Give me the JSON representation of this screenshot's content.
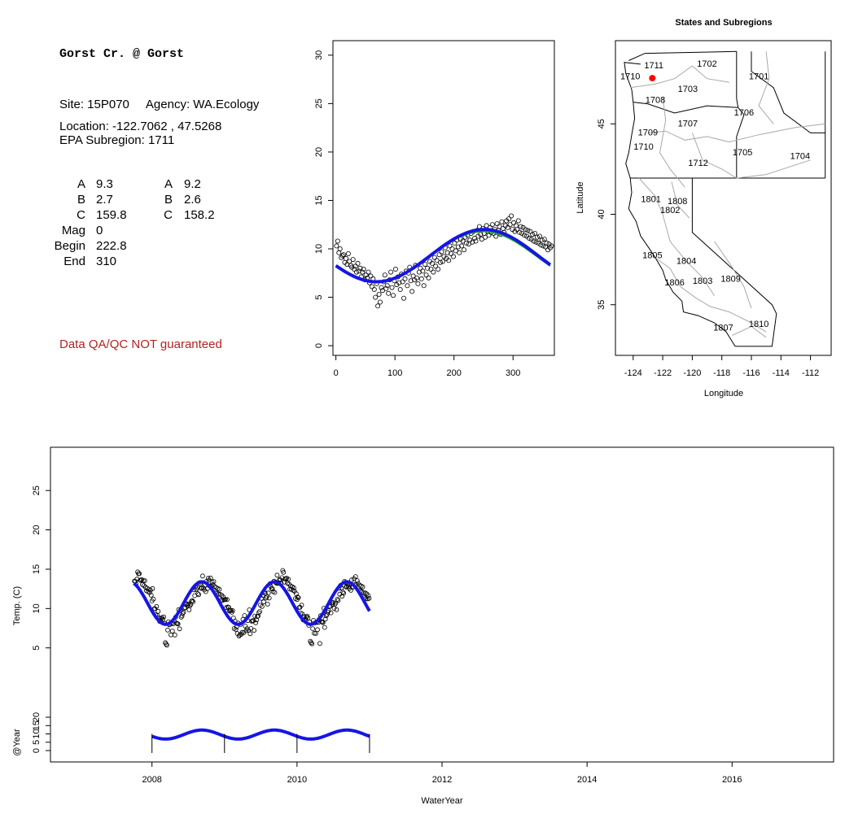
{
  "site": {
    "title": "Gorst Cr. @ Gorst",
    "site_line": "Site: 15P070     Agency: WA.Ecology",
    "location_line": "Location: -122.7062 , 47.5268",
    "subregion_line": "EPA Subregion: 1711",
    "params_left": [
      {
        "label": "A",
        "value": "9.3"
      },
      {
        "label": "B",
        "value": "2.7"
      },
      {
        "label": "C",
        "value": "159.8"
      },
      {
        "label": "Mag",
        "value": "0"
      },
      {
        "label": "Begin",
        "value": "222.8"
      },
      {
        "label": "End",
        "value": "310"
      }
    ],
    "params_right": [
      {
        "label": "A",
        "value": "9.2"
      },
      {
        "label": "B",
        "value": "2.6"
      },
      {
        "label": "C",
        "value": "158.2"
      }
    ],
    "qa_note": "Data QA/QC NOT guaranteed",
    "qa_color": "#b22222"
  },
  "colors": {
    "fit": "#1515e6",
    "fit_alt": "#22aa22",
    "points": "#000000",
    "boundary": "#000000",
    "subregion": "#a9a9a9",
    "site_marker": "#ff0000"
  },
  "chart_data": [
    {
      "id": "doy",
      "type": "scatter",
      "title": "",
      "xlabel": "",
      "ylabel": "",
      "xlim": [
        -5,
        370
      ],
      "ylim": [
        -1,
        31.5
      ],
      "xticks": [
        0,
        100,
        200,
        300
      ],
      "yticks": [
        0,
        5,
        10,
        15,
        20,
        25,
        30
      ],
      "model": {
        "A": 9.3,
        "B": 2.7,
        "C": 159.8
      },
      "model_alt": {
        "A": 9.2,
        "B": 2.6,
        "C": 158.2
      },
      "points": [
        [
          1,
          10.3
        ],
        [
          3,
          10.8
        ],
        [
          5,
          9.6
        ],
        [
          7,
          10.0
        ],
        [
          9,
          9.1
        ],
        [
          11,
          9.3
        ],
        [
          13,
          9.4
        ],
        [
          15,
          8.6
        ],
        [
          17,
          9.0
        ],
        [
          19,
          8.4
        ],
        [
          21,
          9.5
        ],
        [
          23,
          8.7
        ],
        [
          25,
          8.3
        ],
        [
          27,
          8.1
        ],
        [
          29,
          8.9
        ],
        [
          31,
          7.9
        ],
        [
          33,
          8.2
        ],
        [
          35,
          7.6
        ],
        [
          37,
          8.5
        ],
        [
          39,
          7.7
        ],
        [
          41,
          8.0
        ],
        [
          43,
          7.1
        ],
        [
          45,
          7.6
        ],
        [
          47,
          7.9
        ],
        [
          49,
          6.8
        ],
        [
          51,
          7.3
        ],
        [
          53,
          7.0
        ],
        [
          55,
          7.6
        ],
        [
          57,
          6.5
        ],
        [
          59,
          7.2
        ],
        [
          61,
          6.1
        ],
        [
          63,
          6.9
        ],
        [
          65,
          5.8
        ],
        [
          67,
          5.0
        ],
        [
          69,
          6.4
        ],
        [
          71,
          4.1
        ],
        [
          73,
          5.3
        ],
        [
          75,
          4.5
        ],
        [
          77,
          6.0
        ],
        [
          79,
          5.7
        ],
        [
          81,
          6.6
        ],
        [
          83,
          7.3
        ],
        [
          85,
          5.9
        ],
        [
          87,
          6.2
        ],
        [
          89,
          5.4
        ],
        [
          91,
          6.8
        ],
        [
          93,
          7.6
        ],
        [
          95,
          6.0
        ],
        [
          97,
          5.2
        ],
        [
          99,
          6.7
        ],
        [
          101,
          7.9
        ],
        [
          103,
          6.3
        ],
        [
          105,
          7.1
        ],
        [
          107,
          6.5
        ],
        [
          109,
          5.8
        ],
        [
          111,
          7.4
        ],
        [
          113,
          6.6
        ],
        [
          115,
          4.9
        ],
        [
          117,
          6.9
        ],
        [
          119,
          7.7
        ],
        [
          121,
          6.2
        ],
        [
          123,
          7.5
        ],
        [
          125,
          8.1
        ],
        [
          127,
          6.7
        ],
        [
          129,
          5.6
        ],
        [
          131,
          7.2
        ],
        [
          133,
          6.8
        ],
        [
          135,
          8.3
        ],
        [
          137,
          7.0
        ],
        [
          139,
          6.4
        ],
        [
          141,
          7.6
        ],
        [
          143,
          8.0
        ],
        [
          145,
          6.9
        ],
        [
          147,
          7.7
        ],
        [
          149,
          6.2
        ],
        [
          151,
          8.4
        ],
        [
          153,
          7.3
        ],
        [
          155,
          8.0
        ],
        [
          157,
          7.0
        ],
        [
          159,
          8.7
        ],
        [
          161,
          7.9
        ],
        [
          163,
          8.5
        ],
        [
          165,
          7.6
        ],
        [
          167,
          9.1
        ],
        [
          169,
          8.2
        ],
        [
          171,
          8.8
        ],
        [
          173,
          7.9
        ],
        [
          175,
          9.4
        ],
        [
          177,
          8.6
        ],
        [
          179,
          9.7
        ],
        [
          181,
          8.7
        ],
        [
          183,
          9.2
        ],
        [
          185,
          10.1
        ],
        [
          187,
          9.0
        ],
        [
          189,
          9.6
        ],
        [
          191,
          8.8
        ],
        [
          193,
          10.3
        ],
        [
          195,
          9.5
        ],
        [
          197,
          10.0
        ],
        [
          199,
          9.2
        ],
        [
          201,
          10.6
        ],
        [
          203,
          9.8
        ],
        [
          205,
          10.9
        ],
        [
          207,
          10.2
        ],
        [
          209,
          9.6
        ],
        [
          211,
          11.0
        ],
        [
          213,
          10.3
        ],
        [
          215,
          10.8
        ],
        [
          217,
          9.9
        ],
        [
          219,
          11.2
        ],
        [
          221,
          10.6
        ],
        [
          223,
          11.4
        ],
        [
          225,
          10.5
        ],
        [
          227,
          10.9
        ],
        [
          229,
          11.6
        ],
        [
          231,
          10.7
        ],
        [
          233,
          11.8
        ],
        [
          235,
          11.1
        ],
        [
          237,
          10.8
        ],
        [
          239,
          11.9
        ],
        [
          241,
          11.3
        ],
        [
          243,
          12.3
        ],
        [
          245,
          11.5
        ],
        [
          247,
          11.0
        ],
        [
          249,
          12.1
        ],
        [
          251,
          11.6
        ],
        [
          253,
          11.2
        ],
        [
          255,
          12.4
        ],
        [
          257,
          11.8
        ],
        [
          259,
          11.4
        ],
        [
          261,
          12.2
        ],
        [
          263,
          11.7
        ],
        [
          265,
          12.5
        ],
        [
          267,
          11.6
        ],
        [
          269,
          12.0
        ],
        [
          271,
          11.3
        ],
        [
          273,
          12.6
        ],
        [
          275,
          11.9
        ],
        [
          277,
          12.3
        ],
        [
          279,
          11.5
        ],
        [
          281,
          12.8
        ],
        [
          283,
          12.1
        ],
        [
          285,
          11.7
        ],
        [
          287,
          12.4
        ],
        [
          289,
          12.9
        ],
        [
          291,
          12.2
        ],
        [
          293,
          13.1
        ],
        [
          295,
          12.5
        ],
        [
          297,
          13.4
        ],
        [
          299,
          12.0
        ],
        [
          301,
          12.7
        ],
        [
          303,
          11.8
        ],
        [
          305,
          12.4
        ],
        [
          307,
          12.0
        ],
        [
          309,
          12.9
        ],
        [
          311,
          11.7
        ],
        [
          313,
          12.3
        ],
        [
          315,
          11.6
        ],
        [
          317,
          12.2
        ],
        [
          319,
          11.4
        ],
        [
          321,
          12.0
        ],
        [
          323,
          11.3
        ],
        [
          325,
          11.9
        ],
        [
          327,
          11.1
        ],
        [
          329,
          11.8
        ],
        [
          331,
          11.0
        ],
        [
          333,
          11.5
        ],
        [
          335,
          10.8
        ],
        [
          337,
          11.6
        ],
        [
          339,
          10.7
        ],
        [
          341,
          11.2
        ],
        [
          343,
          10.6
        ],
        [
          345,
          11.3
        ],
        [
          347,
          10.4
        ],
        [
          349,
          10.9
        ],
        [
          351,
          10.3
        ],
        [
          353,
          11.0
        ],
        [
          355,
          10.2
        ],
        [
          357,
          10.6
        ],
        [
          359,
          9.9
        ],
        [
          361,
          10.5
        ],
        [
          363,
          10.1
        ],
        [
          365,
          10.3
        ]
      ]
    },
    {
      "id": "map",
      "type": "map",
      "title": "States and Subregions",
      "xlabel": "Longitude",
      "ylabel": "Latitude",
      "xlim": [
        -125.2,
        -110.6
      ],
      "ylim": [
        32.2,
        49.6
      ],
      "xticks": [
        -124,
        -122,
        -120,
        -118,
        -116,
        -114,
        -112
      ],
      "yticks": [
        35,
        40,
        45
      ],
      "site": {
        "lon": -122.7062,
        "lat": 47.5268
      },
      "region_labels": [
        {
          "id": "1711",
          "lon": -122.6,
          "lat": 48.2
        },
        {
          "id": "1702",
          "lon": -119.0,
          "lat": 48.3
        },
        {
          "id": "1701",
          "lon": -115.5,
          "lat": 47.6
        },
        {
          "id": "1710",
          "lon": -124.2,
          "lat": 47.6
        },
        {
          "id": "1703",
          "lon": -120.3,
          "lat": 46.9
        },
        {
          "id": "1708",
          "lon": -122.5,
          "lat": 46.3
        },
        {
          "id": "1706",
          "lon": -116.5,
          "lat": 45.6
        },
        {
          "id": "1707",
          "lon": -120.3,
          "lat": 45.0
        },
        {
          "id": "1709",
          "lon": -123.0,
          "lat": 44.5
        },
        {
          "id": "1710",
          "lon": -123.3,
          "lat": 43.7
        },
        {
          "id": "1705",
          "lon": -116.6,
          "lat": 43.4
        },
        {
          "id": "1704",
          "lon": -112.7,
          "lat": 43.2
        },
        {
          "id": "1712",
          "lon": -119.6,
          "lat": 42.8
        },
        {
          "id": "1801",
          "lon": -122.8,
          "lat": 40.8
        },
        {
          "id": "1808",
          "lon": -121.0,
          "lat": 40.7
        },
        {
          "id": "1802",
          "lon": -121.5,
          "lat": 40.2
        },
        {
          "id": "1805",
          "lon": -122.7,
          "lat": 37.7
        },
        {
          "id": "1804",
          "lon": -120.4,
          "lat": 37.4
        },
        {
          "id": "1806",
          "lon": -121.2,
          "lat": 36.2
        },
        {
          "id": "1803",
          "lon": -119.3,
          "lat": 36.3
        },
        {
          "id": "1809",
          "lon": -117.4,
          "lat": 36.4
        },
        {
          "id": "1807",
          "lon": -117.9,
          "lat": 33.7
        },
        {
          "id": "1810",
          "lon": -115.5,
          "lat": 33.9
        }
      ]
    },
    {
      "id": "timeseries",
      "type": "scatter",
      "title": "",
      "xlabel": "WaterYear",
      "ylabel": "Temp. (C)",
      "ylabel2": "@Year",
      "xlim": [
        2006.6,
        2017.4
      ],
      "ylim": [
        -9.5,
        30.5
      ],
      "xticks": [
        2008,
        2010,
        2012,
        2014,
        2016
      ],
      "yticks": [
        5,
        10,
        15,
        20,
        25
      ],
      "yticks2": [
        0,
        5,
        10,
        15,
        20
      ],
      "series_start": 2007.75,
      "series_end": 2011.0,
      "model": {
        "A": 9.3,
        "B": 2.7,
        "C": 159.8
      },
      "year_markers": [
        2008,
        2009,
        2010,
        2011
      ]
    }
  ]
}
